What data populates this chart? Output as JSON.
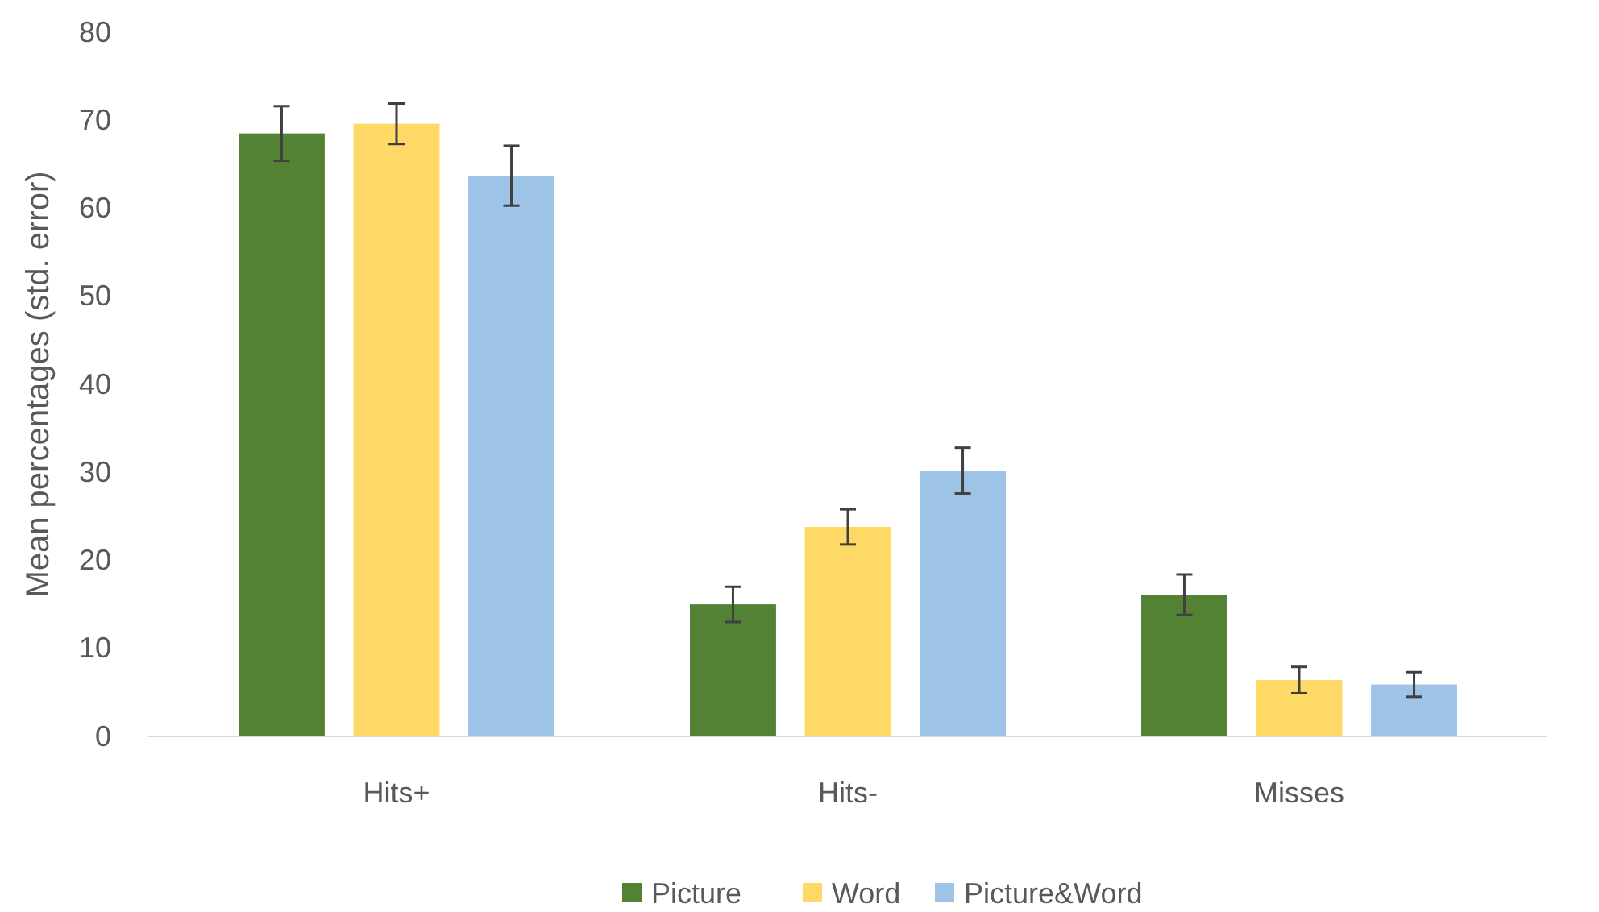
{
  "chart_data": {
    "type": "bar",
    "ylabel": "Mean percentages (std. error)",
    "categories": [
      "Hits+",
      "Hits-",
      "Misses"
    ],
    "series": [
      {
        "name": "Picture",
        "color": "#548235",
        "values": [
          68.5,
          15.0,
          16.1
        ],
        "errors": [
          3.1,
          2.0,
          2.3
        ]
      },
      {
        "name": "Word",
        "color": "#ffd966",
        "values": [
          69.6,
          23.8,
          6.4
        ],
        "errors": [
          2.3,
          2.0,
          1.5
        ]
      },
      {
        "name": "Picture&Word",
        "color": "#9dc3e6",
        "values": [
          63.7,
          30.2,
          5.9
        ],
        "errors": [
          3.4,
          2.6,
          1.4
        ]
      }
    ],
    "ylim": [
      0,
      80
    ],
    "yticks": [
      0,
      10,
      20,
      30,
      40,
      50,
      60,
      70,
      80
    ],
    "grid": false,
    "legend": "bottom"
  }
}
